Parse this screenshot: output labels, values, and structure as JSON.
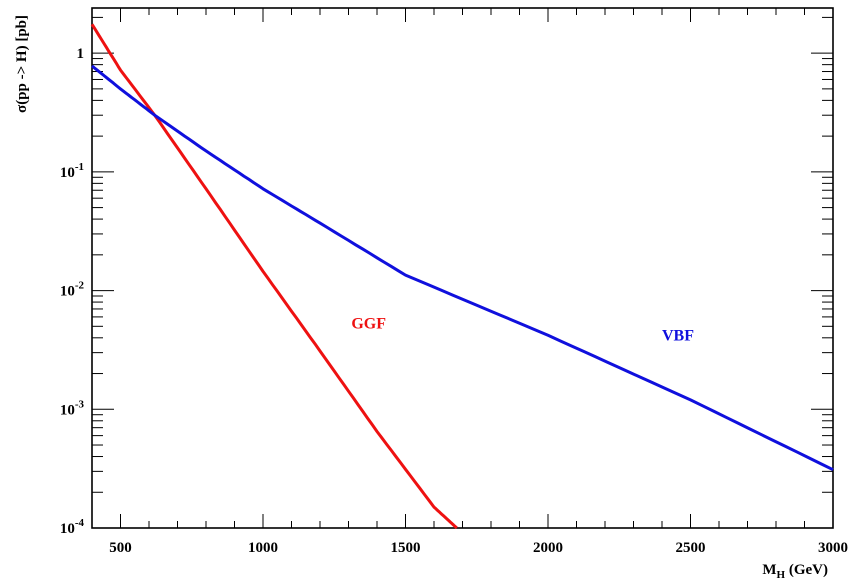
{
  "chart_data": {
    "type": "line",
    "xlabel_main": "M",
    "xlabel_sub": "H",
    "xlabel_units": " (GeV)",
    "ylabel": "σ(pp -> H) [pb]",
    "xlim": [
      400,
      3000
    ],
    "ylim": [
      0.0001,
      2.4
    ],
    "yscale": "log",
    "grid": false,
    "x_ticks": [
      {
        "value": 500,
        "label": "500"
      },
      {
        "value": 1000,
        "label": "1000"
      },
      {
        "value": 1500,
        "label": "1500"
      },
      {
        "value": 2000,
        "label": "2000"
      },
      {
        "value": 2500,
        "label": "2500"
      },
      {
        "value": 3000,
        "label": "3000"
      }
    ],
    "y_ticks": [
      {
        "value": 1,
        "base": "1",
        "exp": ""
      },
      {
        "value": 0.1,
        "base": "10",
        "exp": "-1"
      },
      {
        "value": 0.01,
        "base": "10",
        "exp": "-2"
      },
      {
        "value": 0.001,
        "base": "10",
        "exp": "-3"
      },
      {
        "value": 0.0001,
        "base": "10",
        "exp": "-4"
      }
    ],
    "series": [
      {
        "name": "GGF",
        "color": "#ee1111",
        "x": [
          400,
          500,
          620,
          800,
          1000,
          1200,
          1400,
          1600,
          1680
        ],
        "y": [
          1.75,
          0.72,
          0.3,
          0.072,
          0.0145,
          0.0031,
          0.00065,
          0.00015,
          0.0001
        ]
      },
      {
        "name": "VBF",
        "color": "#1010dd",
        "x": [
          400,
          500,
          620,
          800,
          1000,
          1200,
          1500,
          2000,
          2500,
          3000
        ],
        "y": [
          0.78,
          0.5,
          0.3,
          0.15,
          0.072,
          0.037,
          0.0135,
          0.0042,
          0.0012,
          0.00031
        ]
      }
    ],
    "annotations": [
      {
        "text": "GGF",
        "series": "GGF",
        "x": 1310,
        "y": 0.0048
      },
      {
        "text": "VBF",
        "series": "VBF",
        "x": 2400,
        "y": 0.0038
      }
    ]
  }
}
